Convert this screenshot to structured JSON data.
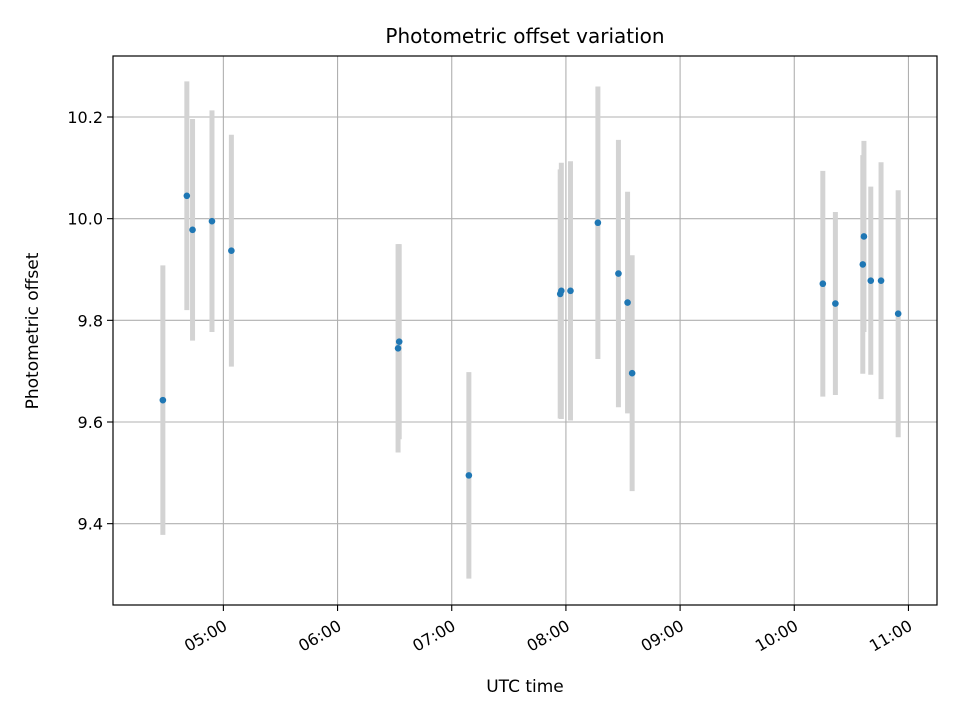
{
  "chart_data": {
    "type": "scatter",
    "title": "Photometric offset variation",
    "xlabel": "UTC time",
    "ylabel": "Photometric offset",
    "x_unit": "hours UTC",
    "xlim": [
      4.0333,
      11.25
    ],
    "ylim": [
      9.24,
      10.32
    ],
    "x_ticks": [
      {
        "value": 5,
        "label": "05:00"
      },
      {
        "value": 6,
        "label": "06:00"
      },
      {
        "value": 7,
        "label": "07:00"
      },
      {
        "value": 8,
        "label": "08:00"
      },
      {
        "value": 9,
        "label": "09:00"
      },
      {
        "value": 10,
        "label": "10:00"
      },
      {
        "value": 11,
        "label": "11:00"
      }
    ],
    "y_ticks": [
      {
        "value": 9.4,
        "label": "9.4"
      },
      {
        "value": 9.6,
        "label": "9.6"
      },
      {
        "value": 9.8,
        "label": "9.8"
      },
      {
        "value": 10.0,
        "label": "10.0"
      },
      {
        "value": 10.2,
        "label": "10.2"
      }
    ],
    "grid": true,
    "x_tick_rotation": -30,
    "colors": {
      "point": "#1f77b4",
      "errorbar": "#d3d3d3",
      "grid": "#b0b0b0"
    },
    "points": [
      {
        "x": 4.47,
        "y": 9.643,
        "err": 0.265
      },
      {
        "x": 4.68,
        "y": 10.045,
        "err": 0.225
      },
      {
        "x": 4.73,
        "y": 9.978,
        "err": 0.218
      },
      {
        "x": 4.9,
        "y": 9.995,
        "err": 0.218
      },
      {
        "x": 5.07,
        "y": 9.937,
        "err": 0.228
      },
      {
        "x": 6.53,
        "y": 9.745,
        "err": 0.205
      },
      {
        "x": 6.54,
        "y": 9.758,
        "err": 0.192
      },
      {
        "x": 7.15,
        "y": 9.495,
        "err": 0.203
      },
      {
        "x": 7.95,
        "y": 9.852,
        "err": 0.245
      },
      {
        "x": 7.96,
        "y": 9.858,
        "err": 0.252
      },
      {
        "x": 8.04,
        "y": 9.858,
        "err": 0.255
      },
      {
        "x": 8.28,
        "y": 9.992,
        "err": 0.268
      },
      {
        "x": 8.46,
        "y": 9.892,
        "err": 0.263
      },
      {
        "x": 8.54,
        "y": 9.835,
        "err": 0.218
      },
      {
        "x": 8.58,
        "y": 9.696,
        "err": 0.232
      },
      {
        "x": 10.25,
        "y": 9.872,
        "err": 0.222
      },
      {
        "x": 10.36,
        "y": 9.833,
        "err": 0.18
      },
      {
        "x": 10.6,
        "y": 9.91,
        "err": 0.215
      },
      {
        "x": 10.61,
        "y": 9.965,
        "err": 0.188
      },
      {
        "x": 10.67,
        "y": 9.878,
        "err": 0.185
      },
      {
        "x": 10.76,
        "y": 9.878,
        "err": 0.233
      },
      {
        "x": 10.91,
        "y": 9.813,
        "err": 0.243
      }
    ]
  }
}
